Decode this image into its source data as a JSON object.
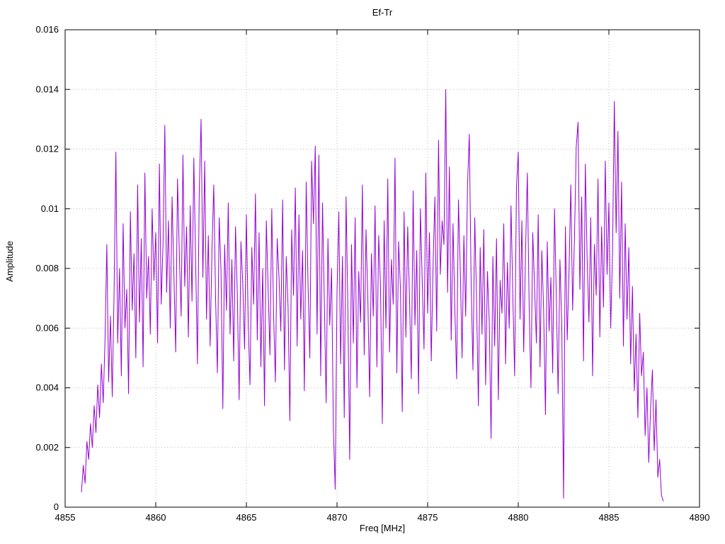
{
  "chart_data": {
    "type": "line",
    "title": "Ef-Tr",
    "xlabel": "Freq [MHz]",
    "ylabel": "Amplitude",
    "xlim": [
      4855,
      4890
    ],
    "ylim": [
      0,
      0.016
    ],
    "grid": true,
    "legend": "none",
    "line_color": "#9400d3",
    "grid_color": "#b8b8b8",
    "axis_color": "#000000",
    "xticks": [
      4855,
      4860,
      4865,
      4870,
      4875,
      4880,
      4885,
      4890
    ],
    "xtick_labels": [
      "4855",
      "4860",
      "4865",
      "4870",
      "4875",
      "4880",
      "4885",
      "4890"
    ],
    "yticks": [
      0,
      0.002,
      0.004,
      0.006,
      0.008,
      0.01,
      0.012,
      0.014,
      0.016
    ],
    "ytick_labels": [
      "0",
      "0.002",
      "0.004",
      "0.006",
      "0.008",
      "0.01",
      "0.012",
      "0.014",
      "0.016"
    ],
    "series": [
      {
        "name": "Ef-Tr",
        "x_start": 4855.9,
        "x_step": 0.1,
        "values_scale": 0.0001,
        "values": [
          5,
          14,
          8,
          22,
          16,
          28,
          20,
          34,
          25,
          41,
          30,
          48,
          35,
          56,
          88,
          42,
          64,
          37,
          72,
          119,
          55,
          80,
          44,
          95,
          60,
          73,
          38,
          99,
          66,
          85,
          50,
          108,
          62,
          90,
          47,
          112,
          70,
          84,
          58,
          100,
          76,
          92,
          55,
          115,
          68,
          88,
          128,
          72,
          96,
          60,
          104,
          78,
          52,
          110,
          85,
          64,
          118,
          74,
          94,
          57,
          101,
          69,
          117,
          82,
          48,
          106,
          130,
          77,
          116,
          63,
          91,
          54,
          86,
          108,
          70,
          45,
          97,
          79,
          33,
          88,
          66,
          102,
          58,
          83,
          49,
          94,
          71,
          36,
          89,
          75,
          53,
          98,
          62,
          41,
          87,
          68,
          105,
          56,
          92,
          47,
          80,
          34,
          96,
          73,
          51,
          100,
          65,
          42,
          90,
          77,
          59,
          103,
          46,
          84,
          67,
          29,
          93,
          71,
          107,
          54,
          98,
          63,
          86,
          39,
          109,
          75,
          50,
          116,
          95,
          121,
          58,
          118,
          44,
          102,
          69,
          35,
          90,
          61,
          80,
          26,
          6,
          72,
          99,
          48,
          84,
          30,
          104,
          66,
          16,
          88,
          55,
          97,
          40,
          79,
          62,
          108,
          51,
          93,
          70,
          37,
          85,
          64,
          101,
          47,
          91,
          74,
          28,
          96,
          60,
          110,
          52,
          83,
          68,
          117,
          45,
          89,
          73,
          32,
          99,
          57,
          94,
          70,
          43,
          106,
          61,
          86,
          38,
          100,
          76,
          53,
          112,
          65,
          92,
          49,
          81,
          104,
          59,
          123,
          78,
          96,
          88,
          140,
          72,
          114,
          56,
          95,
          67,
          43,
          103,
          80,
          50,
          91,
          64,
          108,
          125,
          75,
          46,
          97,
          69,
          34,
          87,
          58,
          93,
          41,
          79,
          62,
          23,
          84,
          54,
          90,
          36,
          76,
          65,
          95,
          48,
          82,
          60,
          101,
          71,
          44,
          107,
          119,
          63,
          96,
          52,
          85,
          112,
          68,
          40,
          92,
          74,
          55,
          98,
          47,
          86,
          66,
          31,
          89,
          59,
          77,
          45,
          100,
          70,
          38,
          83,
          61,
          3,
          94,
          56,
          79,
          108,
          66,
          90,
          121,
          129,
          73,
          104,
          49,
          115,
          83,
          62,
          97,
          44,
          88,
          71,
          110,
          57,
          94,
          67,
          116,
          78,
          102,
          60,
          85,
          136,
          92,
          126,
          70,
          109,
          54,
          95,
          63,
          87,
          48,
          74,
          39,
          58,
          30,
          65,
          44,
          52,
          24,
          40,
          15,
          33,
          46,
          19,
          36,
          10,
          16,
          4,
          2
        ]
      }
    ]
  }
}
